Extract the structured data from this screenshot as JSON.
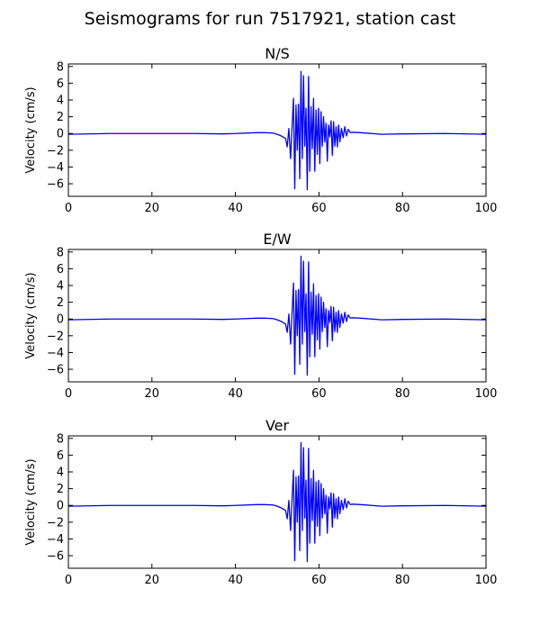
{
  "figure": {
    "suptitle": "Seismograms for run 7517921, station cast"
  },
  "style": {
    "line_color": "#0000ff",
    "axes_color": "#000000",
    "background": "#ffffff"
  },
  "chart_data": [
    {
      "type": "line",
      "title": "N/S",
      "xlabel": "",
      "ylabel": "Velocity (cm/s)",
      "xlim": [
        0,
        100
      ],
      "ylim": [
        -7.5,
        8.3
      ],
      "xticks": [
        0,
        20,
        40,
        60,
        80,
        100
      ],
      "yticks": [
        -6,
        -4,
        -2,
        0,
        2,
        4,
        6,
        8
      ],
      "grid": false,
      "series": [
        {
          "x": [
            0,
            10,
            20,
            30,
            37,
            40,
            45,
            47,
            49,
            50,
            51,
            52,
            52.4,
            52.8,
            53.2,
            53.6,
            53.9,
            54.2,
            54.5,
            54.8,
            55.1,
            55.4,
            55.7,
            56,
            56.3,
            56.6,
            56.9,
            57.2,
            57.5,
            57.8,
            58.1,
            58.4,
            58.7,
            59,
            59.3,
            59.6,
            59.9,
            60.2,
            60.5,
            60.8,
            61.1,
            61.4,
            61.7,
            62,
            62.3,
            62.6,
            62.9,
            63.2,
            63.5,
            63.8,
            64.1,
            64.4,
            64.7,
            65,
            65.4,
            65.8,
            66.2,
            66.6,
            67,
            67.5,
            68,
            70,
            75,
            80,
            90,
            100
          ],
          "y": [
            -0.1,
            0,
            0,
            0,
            -0.05,
            0,
            0.1,
            0.1,
            0.05,
            -0.1,
            -0.3,
            -0.6,
            -1.6,
            0.6,
            -3.0,
            1.2,
            4.2,
            -6.6,
            3.4,
            -2.0,
            3.5,
            -5.4,
            7.4,
            -3.0,
            6.9,
            -1.5,
            3.0,
            -6.7,
            6.8,
            -4.5,
            3.2,
            -1.8,
            4.2,
            -4.5,
            2.8,
            -2.5,
            3.0,
            -3.6,
            2.6,
            -1.5,
            2.0,
            -1.0,
            1.2,
            -3.3,
            1.0,
            -0.4,
            1.5,
            -2.6,
            1.4,
            -1.5,
            0.8,
            -1.6,
            1.0,
            -1.0,
            0.6,
            -0.5,
            0.8,
            -0.3,
            0.5,
            0.1,
            0.15,
            0.1,
            -0.1,
            -0.05,
            0,
            -0.1
          ]
        }
      ]
    },
    {
      "type": "line",
      "title": "E/W",
      "xlabel": "",
      "ylabel": "Velocity (cm/s)",
      "xlim": [
        0,
        100
      ],
      "ylim": [
        -7.5,
        8.3
      ],
      "xticks": [
        0,
        20,
        40,
        60,
        80,
        100
      ],
      "yticks": [
        -6,
        -4,
        -2,
        0,
        2,
        4,
        6,
        8
      ],
      "grid": false,
      "series": [
        {
          "x": [
            0,
            10,
            20,
            30,
            37,
            40,
            45,
            47,
            49,
            50,
            51,
            52,
            52.4,
            52.8,
            53.2,
            53.6,
            53.9,
            54.2,
            54.5,
            54.8,
            55.1,
            55.4,
            55.7,
            56,
            56.3,
            56.6,
            56.9,
            57.2,
            57.5,
            57.8,
            58.1,
            58.4,
            58.7,
            59,
            59.3,
            59.6,
            59.9,
            60.2,
            60.5,
            60.8,
            61.1,
            61.4,
            61.7,
            62,
            62.3,
            62.6,
            62.9,
            63.2,
            63.5,
            63.8,
            64.1,
            64.4,
            64.7,
            65,
            65.4,
            65.8,
            66.2,
            66.6,
            67,
            67.5,
            68,
            70,
            75,
            80,
            90,
            100
          ],
          "y": [
            -0.1,
            0,
            0,
            0,
            -0.05,
            0,
            0.1,
            0.1,
            0.05,
            -0.1,
            -0.3,
            -0.6,
            -1.6,
            0.6,
            -3.0,
            1.2,
            4.3,
            -6.6,
            3.4,
            -2.0,
            3.5,
            -5.4,
            7.5,
            -3.0,
            6.9,
            -1.5,
            3.0,
            -6.7,
            6.8,
            -4.5,
            3.2,
            -1.8,
            4.2,
            -4.5,
            2.8,
            -2.5,
            3.0,
            -3.6,
            2.6,
            -1.5,
            2.0,
            -1.0,
            1.2,
            -3.3,
            1.0,
            -0.4,
            1.5,
            -2.6,
            1.4,
            -1.5,
            0.8,
            -1.6,
            1.0,
            -1.0,
            0.6,
            -0.5,
            0.8,
            -0.3,
            0.5,
            0.1,
            0.15,
            0.1,
            -0.1,
            -0.05,
            0,
            -0.1
          ]
        }
      ]
    },
    {
      "type": "line",
      "title": "Ver",
      "xlabel": "",
      "ylabel": "Velocity (cm/s)",
      "xlim": [
        0,
        100
      ],
      "ylim": [
        -7.5,
        8.3
      ],
      "xticks": [
        0,
        20,
        40,
        60,
        80,
        100
      ],
      "yticks": [
        -6,
        -4,
        -2,
        0,
        2,
        4,
        6,
        8
      ],
      "grid": false,
      "series": [
        {
          "x": [
            0,
            10,
            20,
            30,
            37,
            40,
            45,
            47,
            49,
            50,
            51,
            52,
            52.4,
            52.8,
            53.2,
            53.6,
            53.9,
            54.2,
            54.5,
            54.8,
            55.1,
            55.4,
            55.7,
            56,
            56.3,
            56.6,
            56.9,
            57.2,
            57.5,
            57.8,
            58.1,
            58.4,
            58.7,
            59,
            59.3,
            59.6,
            59.9,
            60.2,
            60.5,
            60.8,
            61.1,
            61.4,
            61.7,
            62,
            62.3,
            62.6,
            62.9,
            63.2,
            63.5,
            63.8,
            64.1,
            64.4,
            64.7,
            65,
            65.4,
            65.8,
            66.2,
            66.6,
            67,
            67.5,
            68,
            70,
            75,
            80,
            90,
            100
          ],
          "y": [
            -0.1,
            0,
            0,
            0,
            -0.05,
            0,
            0.1,
            0.1,
            0.05,
            -0.1,
            -0.3,
            -0.6,
            -1.6,
            0.6,
            -3.0,
            1.2,
            4.2,
            -6.6,
            3.4,
            -2.0,
            3.5,
            -5.4,
            7.5,
            -3.0,
            6.9,
            -1.5,
            3.0,
            -6.7,
            6.8,
            -4.5,
            3.2,
            -1.8,
            4.2,
            -4.5,
            2.8,
            -2.5,
            3.0,
            -3.6,
            2.6,
            -1.5,
            2.0,
            -1.0,
            1.2,
            -3.3,
            1.0,
            -0.4,
            1.5,
            -2.6,
            1.4,
            -1.5,
            0.8,
            -1.6,
            1.0,
            -1.0,
            0.6,
            -0.5,
            0.8,
            -0.3,
            0.5,
            0.1,
            0.15,
            0.1,
            -0.1,
            -0.05,
            0,
            -0.1
          ]
        }
      ]
    }
  ]
}
